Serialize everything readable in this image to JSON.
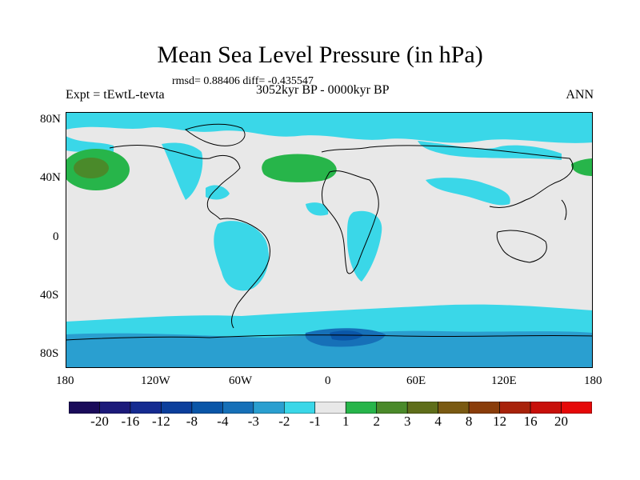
{
  "header": {
    "title": "Mean Sea Level Pressure (in hPa)",
    "stats": "rmsd= 0.88406 diff= -0.435547",
    "experiment": "Expt = tEwtL-tevta",
    "period": "3052kyr BP - 0000kyr BP",
    "season": "ANN"
  },
  "axes": {
    "lat_labels": [
      "80N",
      "40N",
      "0",
      "40S",
      "80S"
    ],
    "lon_labels": [
      "180",
      "120W",
      "60W",
      "0",
      "60E",
      "120E",
      "180"
    ]
  },
  "colorbar": {
    "labels": [
      "-20",
      "-16",
      "-12",
      "-8",
      "-4",
      "-3",
      "-2",
      "-1",
      "1",
      "2",
      "3",
      "4",
      "8",
      "12",
      "16",
      "20"
    ],
    "colors": [
      "#1a0b5a",
      "#1c1a7a",
      "#152b91",
      "#0c3f9c",
      "#0a56a8",
      "#1670b8",
      "#2a9fd0",
      "#3ad7e8",
      "#e8e8e8",
      "#27b54a",
      "#4a8a2a",
      "#5f6e1a",
      "#7a5a12",
      "#8a3d0a",
      "#a8220a",
      "#c80f0a",
      "#e60808"
    ]
  },
  "colors": {
    "ocean_neutral": "#e8e8e8",
    "cyan": "#3ad7e8",
    "green": "#27b54a",
    "olive": "#4a8a2a",
    "light_blue": "#2a9fd0",
    "mid_blue": "#1670b8",
    "dark_blue": "#0a56a8"
  }
}
